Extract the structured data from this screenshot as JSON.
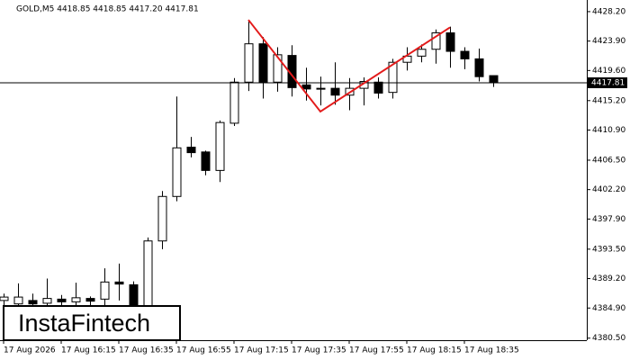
{
  "chart_data": {
    "type": "candlestick",
    "title": "GOLD,M5  4418.85 4418.85 4417.20 4417.81",
    "watermark": "InstaFintech",
    "categories": [
      "17 Aug 2026",
      null,
      null,
      null,
      "17 Aug 16:15",
      null,
      null,
      null,
      "17 Aug 16:35",
      null,
      null,
      null,
      "17 Aug 16:55",
      null,
      null,
      null,
      "17 Aug 17:15",
      null,
      null,
      null,
      "17 Aug 17:35",
      null,
      null,
      null,
      "17 Aug 17:55",
      null,
      null,
      null,
      "17 Aug 18:15",
      null,
      null,
      null,
      "17 Aug 18:35",
      null,
      null
    ],
    "open": [
      4386,
      4385.5,
      4386,
      4385.6,
      4386.2,
      4385.8,
      4386.3,
      4386.2,
      4388.7,
      4388.3,
      4384.9,
      4394.7,
      4401.2,
      4408.4,
      4407.7,
      4405,
      4411.9,
      4417.9,
      4423.5,
      4417.9,
      4421.8,
      4417.5,
      4417,
      4417,
      4416,
      4417,
      4417.9,
      4416.4,
      4420.8,
      4421.7,
      4422.7,
      4425.1,
      4422.4,
      4421.3,
      4418.85
    ],
    "high": [
      4387,
      4388.5,
      4387,
      4389.2,
      4386.8,
      4388.6,
      4386.6,
      4390.7,
      4391.4,
      4388.8,
      4395.2,
      4402,
      4415.8,
      4409.9,
      4407.9,
      4412.3,
      4418.5,
      4426.8,
      4424.5,
      4423,
      4423.3,
      4420,
      4418.7,
      4420.8,
      4418.5,
      4418.6,
      4418.6,
      4421.3,
      4423,
      4423.4,
      4425.6,
      4426,
      4423,
      4422.8,
      4418.85
    ],
    "low": [
      4384,
      4383,
      4383.5,
      4384,
      4384.5,
      4384.8,
      4385,
      4385,
      4386,
      4382,
      4383,
      4393.5,
      4400.5,
      4406.9,
      4404.3,
      4403.3,
      4411.5,
      4416.6,
      4415.5,
      4416.5,
      4415.8,
      4415.2,
      4414.5,
      4414.6,
      4413.8,
      4414.5,
      4415.5,
      4415.5,
      4419.6,
      4420.8,
      4420.6,
      4420,
      4419.8,
      4418,
      4417.2
    ],
    "close": [
      4386.5,
      4386.5,
      4385.5,
      4386.3,
      4385.8,
      4386.4,
      4385.9,
      4388.7,
      4388.4,
      4384.9,
      4394.7,
      4401.2,
      4408.3,
      4407.6,
      4405,
      4412,
      4417.9,
      4423.5,
      4417.9,
      4421.9,
      4417.1,
      4416.9,
      4417,
      4416,
      4417,
      4418,
      4416.3,
      4420.8,
      4421.7,
      4422.7,
      4425.1,
      4422.4,
      4421.3,
      4418.7,
      4417.81
    ],
    "up_color": "#ffffff",
    "down_color": "#000000",
    "ylim": [
      4380.2,
      4429.9
    ],
    "yticks": [
      {
        "value": 4428.2,
        "label": "4428.20"
      },
      {
        "value": 4423.9,
        "label": "4423.90"
      },
      {
        "value": 4419.6,
        "label": "4419.60"
      },
      {
        "value": 4415.2,
        "label": "4415.20"
      },
      {
        "value": 4410.9,
        "label": "4410.90"
      },
      {
        "value": 4406.5,
        "label": "4406.50"
      },
      {
        "value": 4402.2,
        "label": "4402.20"
      },
      {
        "value": 4397.9,
        "label": "4397.90"
      },
      {
        "value": 4393.5,
        "label": "4393.50"
      },
      {
        "value": 4389.2,
        "label": "4389.20"
      },
      {
        "value": 4384.9,
        "label": "4384.90"
      },
      {
        "value": 4380.5,
        "label": "4380.50"
      }
    ],
    "current_price": {
      "value": 4417.81,
      "label": "4417.81"
    },
    "pattern": {
      "color": "#e31b1b",
      "points": [
        [
          17,
          4427.0
        ],
        [
          22,
          4413.6
        ],
        [
          31,
          4425.9
        ]
      ]
    }
  }
}
